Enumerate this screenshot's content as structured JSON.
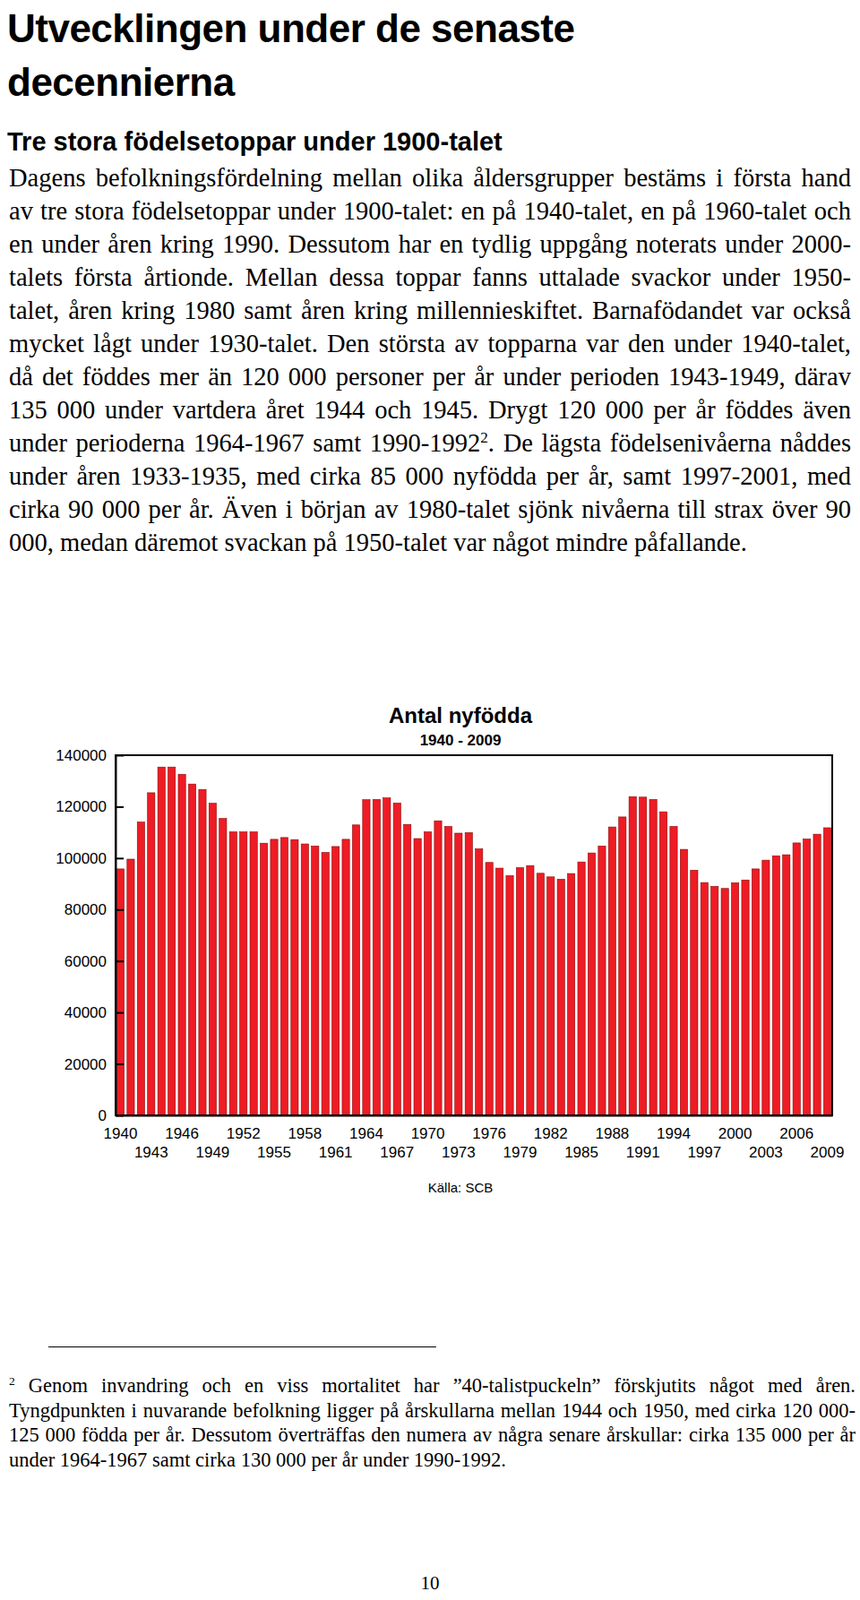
{
  "heading": "Utvecklingen under de senaste decennierna",
  "subheading": "Tre stora födelsetoppar under 1900-talet",
  "paragraph": {
    "before": "Dagens befolkningsfördelning mellan olika åldersgrupper bestäms i första hand av tre stora födelsetoppar under 1900-talet: en på 1940-talet, en på 1960-talet och en under åren kring 1990. Dessutom har en tydlig uppgång noterats under 2000-talets första årtionde. Mellan dessa toppar fanns uttalade svackor under 1950-talet, åren kring 1980 samt åren kring millennieskiftet. Barnafödandet var också mycket lågt under 1930-talet. Den största av topparna var den under 1940-talet, då det föddes mer än 120 000 personer per år under perioden 1943-1949, därav 135 000 under vartdera året 1944 och 1945. Drygt 120 000 per år föddes även under perioderna 1964-1967 samt 1990-1992",
    "footnote_ref": "2",
    "after": ". De lägsta födelsenivåerna nåddes under åren 1933-1935, med cirka 85 000 nyfödda per år, samt 1997-2001, med cirka 90 000 per år. Även i början av 1980-talet sjönk nivåerna till strax över 90 000, medan däremot svackan på 1950-talet var något mindre påfallande."
  },
  "chart_data": {
    "type": "bar",
    "title": "Antal nyfödda",
    "subtitle": "1940 - 2009",
    "source": "Källa: SCB",
    "categories": [
      "1940",
      null,
      null,
      "1943",
      null,
      null,
      "1946",
      null,
      null,
      "1949",
      null,
      null,
      "1952",
      null,
      null,
      "1955",
      null,
      null,
      "1958",
      null,
      null,
      "1961",
      null,
      null,
      "1964",
      null,
      null,
      "1967",
      null,
      null,
      "1970",
      null,
      null,
      "1973",
      null,
      null,
      "1976",
      null,
      null,
      "1979",
      null,
      null,
      "1982",
      null,
      null,
      "1985",
      null,
      null,
      "1988",
      null,
      null,
      "1991",
      null,
      null,
      "1994",
      null,
      null,
      "1997",
      null,
      null,
      "2000",
      null,
      null,
      "2003",
      null,
      null,
      "2006",
      null,
      null,
      "2009"
    ],
    "values": [
      95800,
      99600,
      114000,
      125400,
      135400,
      135400,
      132600,
      128800,
      126700,
      121300,
      115400,
      110200,
      110200,
      110200,
      105800,
      107300,
      108000,
      107200,
      105500,
      104700,
      102200,
      104500,
      107300,
      112900,
      122700,
      122800,
      123400,
      121400,
      113100,
      107600,
      110200,
      114500,
      112300,
      109700,
      109900,
      103600,
      98300,
      96100,
      93200,
      96300,
      97100,
      94100,
      92700,
      91800,
      94000,
      98500,
      102000,
      104700,
      112100,
      116000,
      123900,
      123700,
      122800,
      118000,
      112300,
      103400,
      95300,
      90500,
      89000,
      88200,
      90400,
      91500,
      95800,
      99200,
      100900,
      101300,
      105900,
      107400,
      109300,
      111800
    ],
    "color": "#ee1c24",
    "ylim": [
      0,
      140000
    ],
    "yticks": [
      0,
      20000,
      40000,
      60000,
      80000,
      100000,
      120000,
      140000
    ]
  },
  "footnote": {
    "marker": "2",
    "text": "Genom invandring och en viss mortalitet har ”40-talistpuckeln” förskjutits något med åren. Tyngdpunkten i nuvarande befolkning ligger på årskullarna mellan 1944 och 1950, med cirka 120 000-125 000 födda per år. Dessutom överträffas den numera av några senare årskullar: cirka 135 000 per år under 1964-1967 samt cirka 130 000 per år under 1990-1992."
  },
  "page_number": 10
}
